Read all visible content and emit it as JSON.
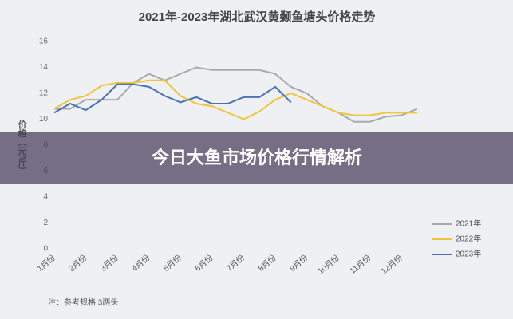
{
  "chart_data": {
    "type": "line",
    "title": "2021年-2023年湖北武汉黄颡鱼塘头价格走势",
    "y_label": "价格（元/斤）",
    "categories": [
      "1月份",
      null,
      "2月份",
      null,
      "3月份",
      null,
      "4月份",
      null,
      "5月份",
      null,
      "6月份",
      null,
      "7月份",
      null,
      "8月份",
      null,
      "9月份",
      null,
      "10月份",
      null,
      "11月份",
      null,
      "12月份",
      null
    ],
    "series": [
      {
        "name": "2021年",
        "color": "#a9a9a9",
        "values": [
          10.8,
          10.8,
          11.5,
          11.5,
          11.5,
          12.8,
          13.5,
          13,
          13.5,
          14,
          13.8,
          13.8,
          13.8,
          13.8,
          13.5,
          12.5,
          12,
          11,
          10.5,
          9.8,
          9.8,
          10.2,
          10.3,
          10.8
        ]
      },
      {
        "name": "2022年",
        "color": "#f2c437",
        "values": [
          10.8,
          11.5,
          11.8,
          12.6,
          12.8,
          12.8,
          13,
          13,
          11.8,
          11.2,
          11,
          10.5,
          10,
          10.6,
          11.5,
          12,
          11.5,
          11,
          10.5,
          10.3,
          10.3,
          10.5,
          10.5,
          10.5
        ]
      },
      {
        "name": "2023年",
        "color": "#4a72b8",
        "values": [
          10.5,
          11.2,
          10.7,
          11.5,
          12.7,
          12.7,
          12.5,
          11.8,
          11.3,
          11.7,
          11.2,
          11.2,
          11.7,
          11.7,
          12.5,
          11.3,
          null,
          null,
          null,
          null,
          null,
          null,
          null,
          null
        ]
      }
    ],
    "ylim": [
      0,
      16
    ],
    "yticks": [
      0,
      2,
      4,
      6,
      8,
      10,
      12,
      14,
      16
    ],
    "note": "注：参考规格 3两头",
    "legend": "lower right"
  },
  "banner": {
    "text": "今日大鱼市场价格行情解析"
  }
}
